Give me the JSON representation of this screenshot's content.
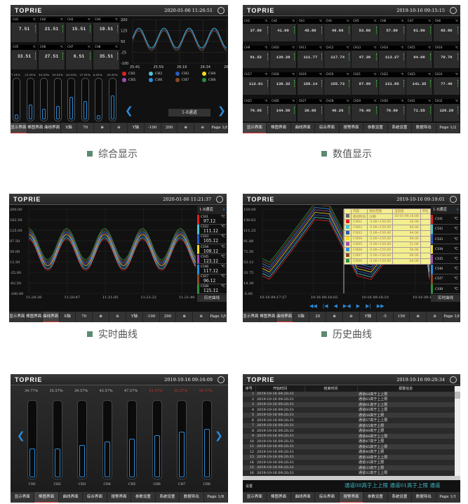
{
  "brand": "TOPRIE",
  "captions": {
    "p1": "综合显示",
    "p2": "数值显示",
    "p3": "实时曲线",
    "p4": "历史曲线"
  },
  "colors": {
    "accent": "#2a8ad8",
    "alarm": "#e03030",
    "channels": [
      "#e02020",
      "#4cc8d0",
      "#2a5ac0",
      "#f0e020",
      "#a050b0",
      "#2a90e0",
      "#8a4a20",
      "#2a9040"
    ]
  },
  "nav_full": [
    "显示界面",
    "棒图界面",
    "曲线界面",
    "综合界面",
    "报警界面",
    "参数设置",
    "系统设置",
    "数据导出"
  ],
  "p1": {
    "time": "2020-01-06  11:26:51",
    "unit": "℃",
    "tiles": [
      {
        "ch": "CH1",
        "v": "7.51"
      },
      {
        "ch": "CH2",
        "v": "21.51"
      },
      {
        "ch": "CH3",
        "v": "15.51"
      },
      {
        "ch": "CH4",
        "v": "19.51"
      },
      {
        "ch": "CH5",
        "v": "33.51"
      },
      {
        "ch": "CH6",
        "v": "27.51"
      },
      {
        "ch": "CH7",
        "v": "6.51"
      },
      {
        "ch": "CH8",
        "v": "35.51"
      }
    ],
    "bars": [
      {
        "label": "7.51%",
        "pct": 7.51
      },
      {
        "label": "21.51%",
        "pct": 21.51
      },
      {
        "label": "15.51%",
        "pct": 15.51
      },
      {
        "label": "19.51%",
        "pct": 19.51
      },
      {
        "label": "33.51%",
        "pct": 33.51
      },
      {
        "label": "27.51%",
        "pct": 27.51
      },
      {
        "label": "6.51%",
        "pct": 6.51
      },
      {
        "label": "35.51%",
        "pct": 35.51
      }
    ],
    "yticks": [
      "200",
      "125",
      "50",
      "-25",
      "-100"
    ],
    "xticks": [
      "25:41",
      "25:59",
      "26:16",
      "26:34",
      "26:5"
    ],
    "legend": [
      "CH1",
      "CH2",
      "CH3",
      "CH4",
      "CH5",
      "CH6",
      "CH7",
      "CH8"
    ],
    "channel_group": "1-8通道",
    "nav": [
      "显示界面",
      "棒图界面",
      "曲线界面"
    ],
    "x_axis": "X轴",
    "x_val": "70",
    "y_axis": "Y轴",
    "y_min": "-100",
    "y_max": "200",
    "page": "Page 1/8"
  },
  "p2": {
    "time": "2019-10-16  09:15:15",
    "unit": "℃",
    "page": "Page 1/2",
    "tiles": [
      [
        "CH1",
        "37.80"
      ],
      [
        "CH2",
        "41.80"
      ],
      [
        "CH3",
        "45.80"
      ],
      [
        "CH4",
        "49.80"
      ],
      [
        "CH5",
        "53.80"
      ],
      [
        "CH6",
        "57.80"
      ],
      [
        "CH7",
        "61.80"
      ],
      [
        "CH8",
        "65.80"
      ],
      [
        "CH9",
        "81.52"
      ],
      [
        "CH10",
        "139.28"
      ],
      [
        "CH11",
        "111.77"
      ],
      [
        "CH12",
        "117.74"
      ],
      [
        "CH13",
        "47.30"
      ],
      [
        "CH14",
        "113.27"
      ],
      [
        "CH15",
        "94.06"
      ],
      [
        "CH16",
        "70.70"
      ],
      [
        "CH17",
        "112.81"
      ],
      [
        "CH18",
        "130.32"
      ],
      [
        "CH19",
        "159.14"
      ],
      [
        "CH20",
        "155.73"
      ],
      [
        "CH21",
        "87.99"
      ],
      [
        "CH22",
        "131.85"
      ],
      [
        "CH23",
        "141.35"
      ],
      [
        "CH24",
        "77.40"
      ],
      [
        "CH25",
        "76.65"
      ],
      [
        "CH26",
        "144.56"
      ],
      [
        "CH27",
        "20.69"
      ],
      [
        "CH28",
        "40.26"
      ],
      [
        "CH29",
        "70.49"
      ],
      [
        "CH30",
        "70.60"
      ],
      [
        "CH31",
        "71.55"
      ],
      [
        "CH32",
        "129.28"
      ]
    ]
  },
  "p3": {
    "time": "2020-01-06  11:21:37",
    "channel_group": "1-8通道",
    "unit": "℃",
    "yticks": [
      "200.00",
      "162.50",
      "125.00",
      "87.50",
      "50.00",
      "12.50",
      "-25.00",
      "-62.50",
      "-100.00"
    ],
    "xticks": [
      "11:20:30",
      "11:20:47",
      "11:21:05",
      "11:21:22",
      "11:21:40"
    ],
    "side": [
      {
        "ch": "CH1",
        "v": "97.12"
      },
      {
        "ch": "CH2",
        "v": "111.12"
      },
      {
        "ch": "CH3",
        "v": "105.12"
      },
      {
        "ch": "CH4",
        "v": "109.12"
      },
      {
        "ch": "CH5",
        "v": "123.12"
      },
      {
        "ch": "CH6",
        "v": "117.12"
      },
      {
        "ch": "CH7",
        "v": "96.12"
      },
      {
        "ch": "CH8",
        "v": "125.12"
      }
    ],
    "button": "历史曲线",
    "nav": [
      "显示界面",
      "棒图界面",
      "曲线界面"
    ],
    "x_axis": "X轴",
    "x_val": "70",
    "y_axis": "Y轴",
    "y_min": "-100",
    "y_max": "200",
    "page": "Page 1/8"
  },
  "p4": {
    "time": "2019-10-16  09:19:01",
    "channel_group": "1-8通道",
    "unit": "℃",
    "yticks": [
      "150.00",
      "130.62",
      "111.25",
      "91.88",
      "72.50",
      "53.12",
      "33.75",
      "14.38",
      "-5.00"
    ],
    "xticks": [
      "10-16 09:17:57",
      "10-16 09:18:03",
      "10-16 09:18:10",
      "10-16 09:18:17"
    ],
    "tip_header": [
      "内容",
      "坐标范围",
      "当前值",
      "单位"
    ],
    "tip_rows": [
      [
        "绝对时间",
        "20秒",
        "10-16 09:18:06"
      ],
      [
        "CH01",
        "-5.00~150.00",
        "36.06"
      ],
      [
        "CH02",
        "-5.00~150.00",
        "40.06"
      ],
      [
        "CH03",
        "-5.00~150.00",
        "44.06"
      ],
      [
        "CH04",
        "-5.00~150.00",
        "48.06"
      ],
      [
        "CH05",
        "-5.00~150.00",
        "52.06"
      ],
      [
        "CH06",
        "-5.00~150.00",
        "56.06"
      ],
      [
        "CH07",
        "-5.00~150.00",
        "60.06"
      ],
      [
        "CH08",
        "-5.00~150.00",
        "64.06"
      ]
    ],
    "side": [
      "CH1",
      "CH2",
      "CH3",
      "CH4",
      "CH5",
      "CH6",
      "CH7",
      "CH8"
    ],
    "playback": [
      "◀◀",
      "|◀",
      "◀",
      "▶◀",
      "▶",
      "▶|",
      "▶▶"
    ],
    "button": "实时曲线",
    "nav": [
      "显示界面",
      "棒图界面",
      "曲线界面"
    ],
    "x_axis": "X轴",
    "x_val": "20",
    "y_axis": "Y轴",
    "y_min": "-5",
    "y_max": "150",
    "page": "Page 1/8"
  },
  "p5": {
    "time": "2019-10-16  09:16:09",
    "page": "Page 1/8",
    "bars": [
      {
        "ch": "CH1",
        "label": "34.77%",
        "pct": 34.77,
        "alarm": false
      },
      {
        "ch": "CH2",
        "label": "35.57%",
        "pct": 35.57,
        "alarm": false
      },
      {
        "ch": "CH3",
        "label": "39.57%",
        "pct": 39.57,
        "alarm": false
      },
      {
        "ch": "CH4",
        "label": "43.57%",
        "pct": 43.57,
        "alarm": false
      },
      {
        "ch": "CH5",
        "label": "47.57%",
        "pct": 47.57,
        "alarm": false
      },
      {
        "ch": "CH6",
        "label": "51.57%",
        "pct": 51.57,
        "alarm": true
      },
      {
        "ch": "CH7",
        "label": "55.57%",
        "pct": 55.57,
        "alarm": true
      },
      {
        "ch": "CH8",
        "label": "59.57%",
        "pct": 59.57,
        "alarm": true
      }
    ]
  },
  "p6": {
    "time": "2019-10-16  09:20:34",
    "page": "Page 1/1",
    "columns": [
      "序号",
      "开始时间",
      "结束时间",
      "报警信息"
    ],
    "rows": [
      [
        "1",
        "2019-10-16 09:20:31",
        "",
        "通道64高于上上限"
      ],
      [
        "2",
        "2019-10-16 09:20:31",
        "",
        "通道63高于上上限"
      ],
      [
        "3",
        "2019-10-16 09:20:31",
        "",
        "通道61高于上上限"
      ],
      [
        "4",
        "2019-10-16 09:20:31",
        "",
        "通道60高于上上限"
      ],
      [
        "5",
        "2019-10-16 09:20:31",
        "",
        "通道58高于上限"
      ],
      [
        "6",
        "2019-10-16 09:20:31",
        "",
        "通道57高于上上限"
      ],
      [
        "7",
        "2019-10-16 09:20:31",
        "",
        "通道55高于上限"
      ],
      [
        "8",
        "2019-10-16 09:20:31",
        "",
        "通道49高于上限"
      ],
      [
        "9",
        "2019-10-16 09:20:31",
        "",
        "通道48高于上上限"
      ],
      [
        "10",
        "2019-10-16 09:20:31",
        "",
        "通道47高于上限"
      ],
      [
        "11",
        "2019-10-16 09:20:31",
        "",
        "通道45高于上上限"
      ],
      [
        "12",
        "2019-10-16 09:20:31",
        "",
        "通道40高于上限"
      ],
      [
        "13",
        "2019-10-16 09:20:31",
        "",
        "通道38高于上上限"
      ],
      [
        "14",
        "2019-10-16 09:20:31",
        "",
        "通道35高于上限"
      ],
      [
        "15",
        "2019-10-16 09:20:31",
        "",
        "通道33高于上限"
      ],
      [
        "16",
        "2019-10-16 09:20:31",
        "",
        "通道32高于上上限"
      ]
    ],
    "settings": "设置",
    "ticker": "通道08高于上上限   通道01高于上限   通道"
  }
}
